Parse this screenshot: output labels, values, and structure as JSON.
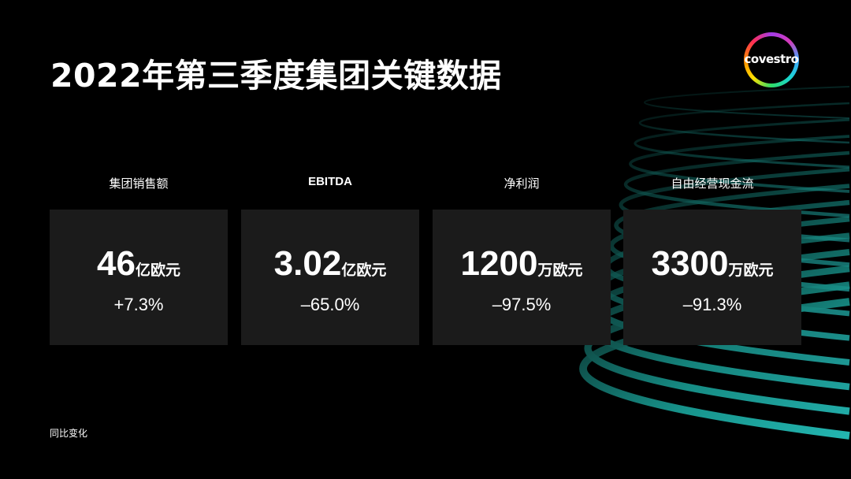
{
  "slide": {
    "title": "2022年第三季度集团关键数据",
    "footnote": "同比变化",
    "logo": {
      "text": "covestro"
    },
    "colors": {
      "background": "#000000",
      "card": "#1b1b1b",
      "accent": "#1fb8b0"
    }
  },
  "kpis": [
    {
      "label": "集团销售额",
      "value": "46",
      "unit": "亿欧元",
      "change": "+7.3%"
    },
    {
      "label": "EBITDA",
      "value": "3.02",
      "unit": "亿欧元",
      "change": "–65.0%"
    },
    {
      "label": "净利润",
      "value": "1200",
      "unit": "万欧元",
      "change": "–97.5%"
    },
    {
      "label": "自由经营现金流",
      "value": "3300",
      "unit": "万欧元",
      "change": "–91.3%"
    }
  ]
}
